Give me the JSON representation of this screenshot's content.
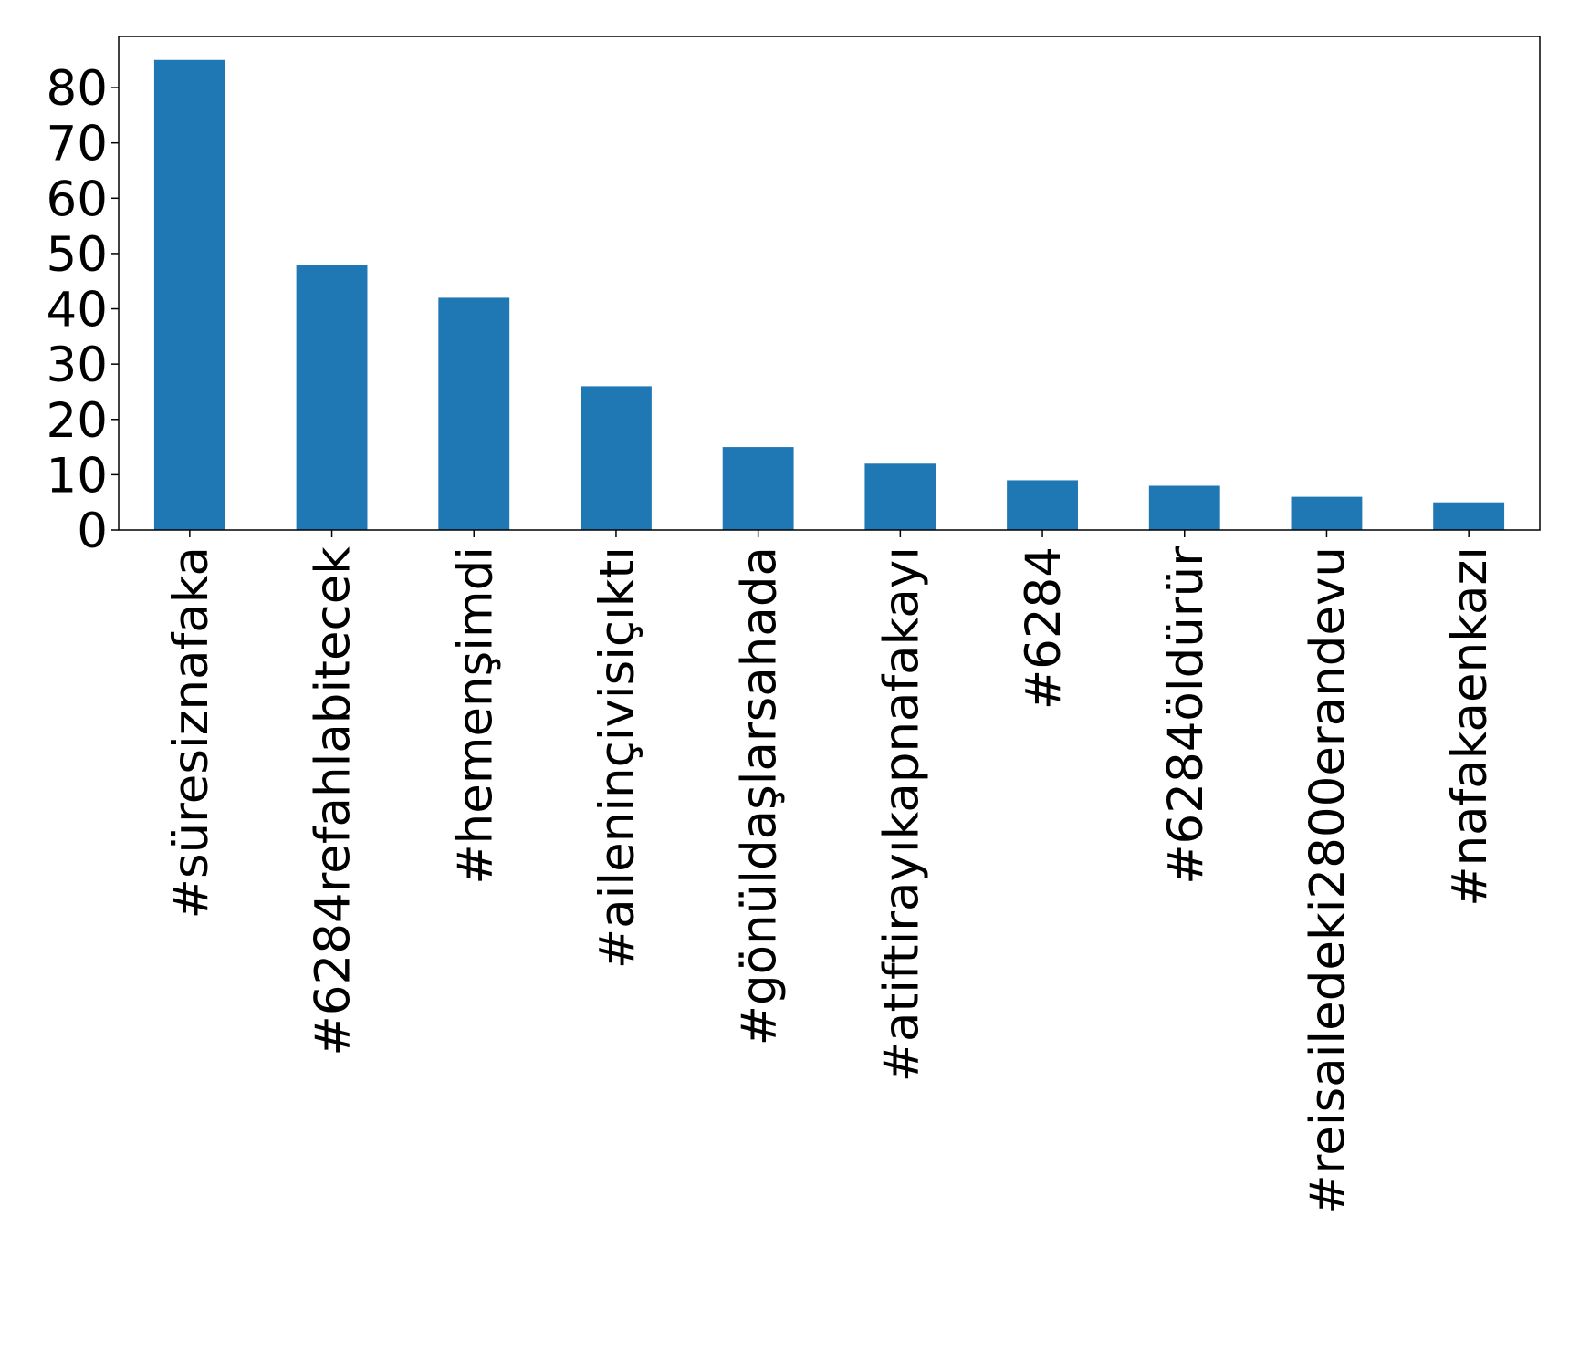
{
  "chart_data": {
    "type": "bar",
    "categories": [
      "#süresiznafaka",
      "#6284refahlabitecek",
      "#hemenşimdi",
      "#aileninçivisiçıktı",
      "#gönüldaşlarsahada",
      "#atiftirayıkapnafakayı",
      "#6284",
      "#6284öldürür",
      "#reisailedeki2800erandevu",
      "#nafakaenkazı"
    ],
    "values": [
      85,
      48,
      42,
      26,
      15,
      12,
      9,
      8,
      6,
      5
    ],
    "color": "#1f77b4",
    "ylim": [
      0,
      89.25
    ],
    "yticks": [
      0,
      10,
      20,
      30,
      40,
      50,
      60,
      70,
      80
    ],
    "grid": false
  }
}
